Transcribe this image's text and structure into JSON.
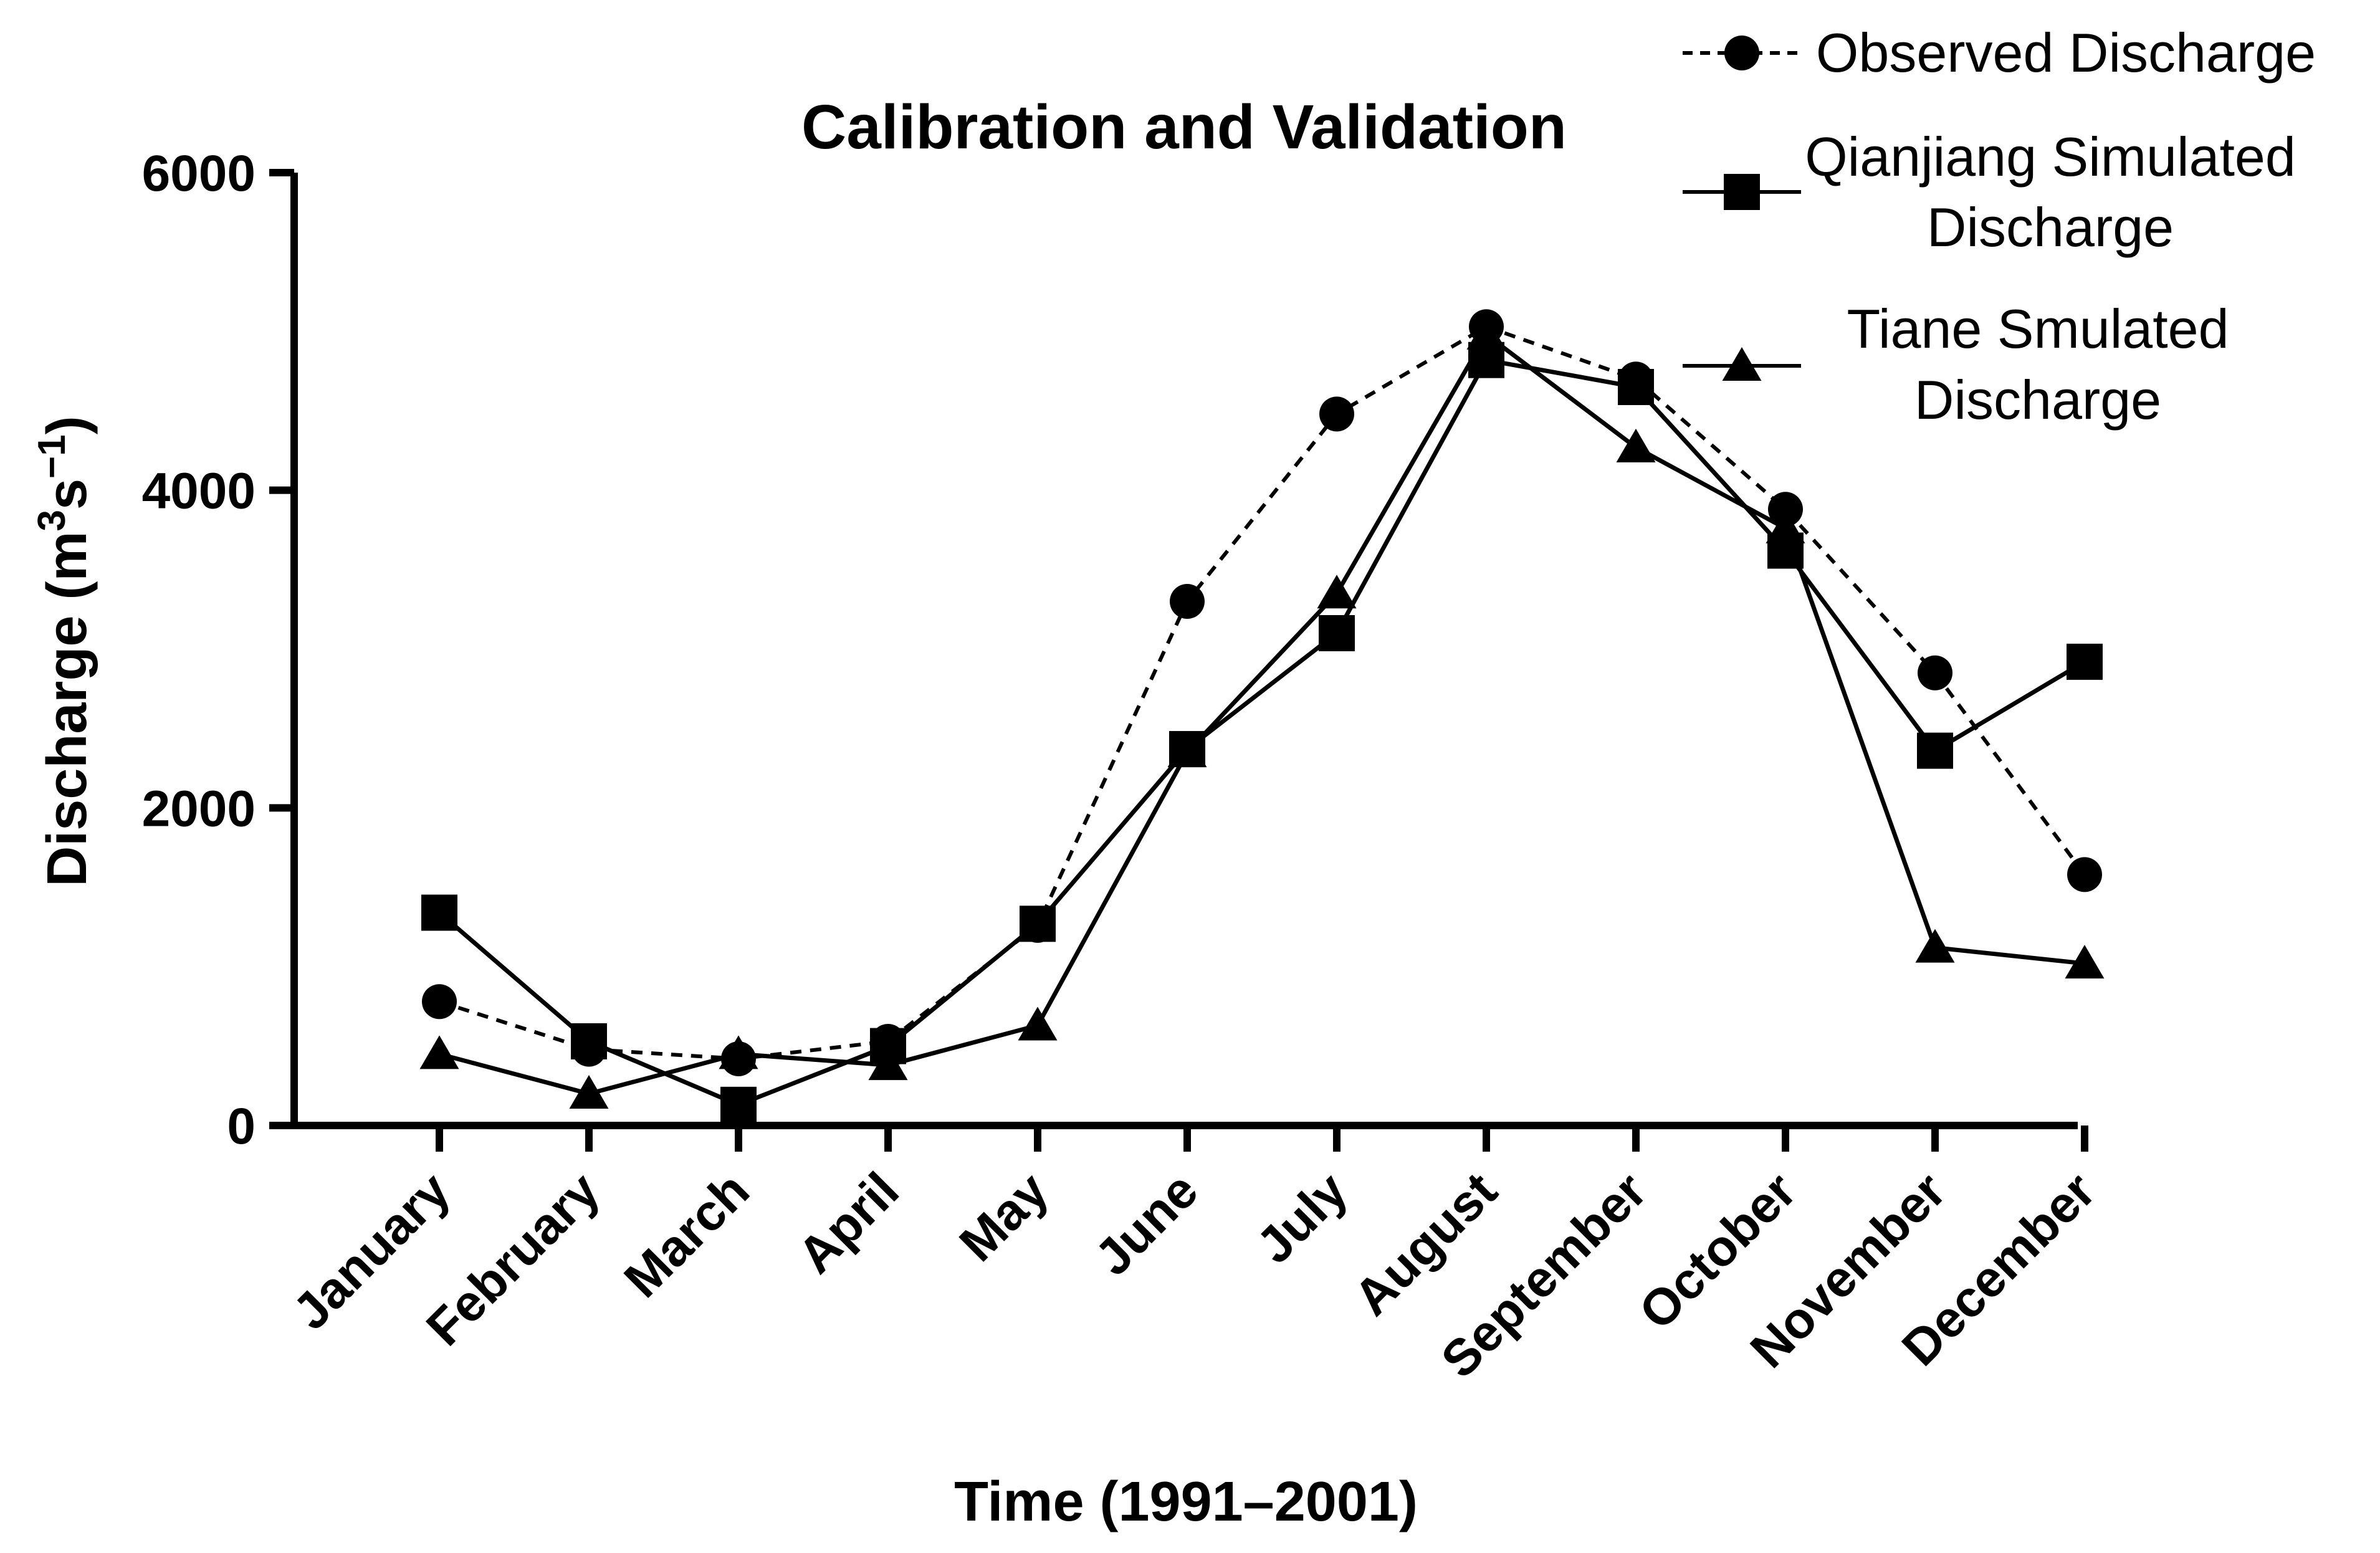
{
  "chart_data": {
    "type": "line",
    "title": "Calibration and Validation",
    "xlabel": "Time (1991–2001)",
    "ylabel": "Discharge (m",
    "ylabel_parts": {
      "prefix": "Discharge (m",
      "sup1": "3",
      "mid": "s",
      "sup2": "−1",
      "suffix": ")"
    },
    "ylim": [
      0,
      6000
    ],
    "yticks": [
      0,
      2000,
      4000,
      6000
    ],
    "yticks_text": [
      "0",
      "2000",
      "4000",
      "6000"
    ],
    "categories": [
      "January",
      "February",
      "March",
      "April",
      "May",
      "June",
      "July",
      "August",
      "September",
      "October",
      "November",
      "December"
    ],
    "series": [
      {
        "name": "Observed Discharge",
        "legend_lines": [
          "Observed Discharge"
        ],
        "marker": "circle",
        "line_style": "dashed",
        "values": [
          780,
          480,
          420,
          530,
          1260,
          3300,
          4480,
          5030,
          4700,
          3880,
          2850,
          1580
        ]
      },
      {
        "name": "Qianjiang Simulated Discharge",
        "legend_lines": [
          "Qianjiang Simulated",
          "Discharge"
        ],
        "marker": "square",
        "line_style": "solid",
        "values": [
          1340,
          530,
          130,
          500,
          1270,
          2370,
          3100,
          4820,
          4650,
          3620,
          2360,
          2920
        ]
      },
      {
        "name": "Tiane Smulated Discharge",
        "legend_lines": [
          "Tiane Smulated",
          "Discharge"
        ],
        "marker": "triangle",
        "line_style": "solid",
        "values": [
          450,
          200,
          450,
          380,
          630,
          2350,
          3350,
          4980,
          4270,
          3760,
          1120,
          1020
        ]
      }
    ],
    "legend_position": "top-right",
    "grid": false,
    "colors": {
      "line": "#000000",
      "marker": "#000000",
      "background": "#ffffff"
    }
  }
}
